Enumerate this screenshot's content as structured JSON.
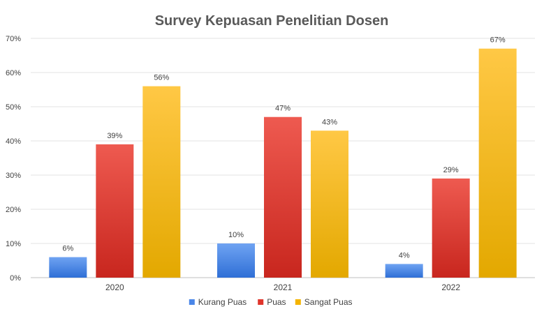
{
  "chart_data": {
    "type": "bar",
    "title": "Survey Kepuasan Penelitian Dosen",
    "categories": [
      "2020",
      "2021",
      "2022"
    ],
    "series": [
      {
        "name": "Kurang Puas",
        "values": [
          6,
          10,
          4
        ],
        "labels": [
          "6%",
          "10%",
          "4%"
        ],
        "color": "#4A86E8"
      },
      {
        "name": "Puas",
        "values": [
          39,
          47,
          29
        ],
        "labels": [
          "39%",
          "47%",
          "29%"
        ],
        "color": "#E0352B"
      },
      {
        "name": "Sangat Puas",
        "values": [
          56,
          43,
          67
        ],
        "labels": [
          "56%",
          "43%",
          "67%"
        ],
        "color": "#F4B400"
      }
    ],
    "ylim": [
      0,
      70
    ],
    "yticks": [
      0,
      10,
      20,
      30,
      40,
      50,
      60,
      70
    ],
    "ytick_labels": [
      "0%",
      "10%",
      "20%",
      "30%",
      "40%",
      "50%",
      "60%",
      "70%"
    ],
    "grid": true,
    "legend_position": "bottom"
  }
}
